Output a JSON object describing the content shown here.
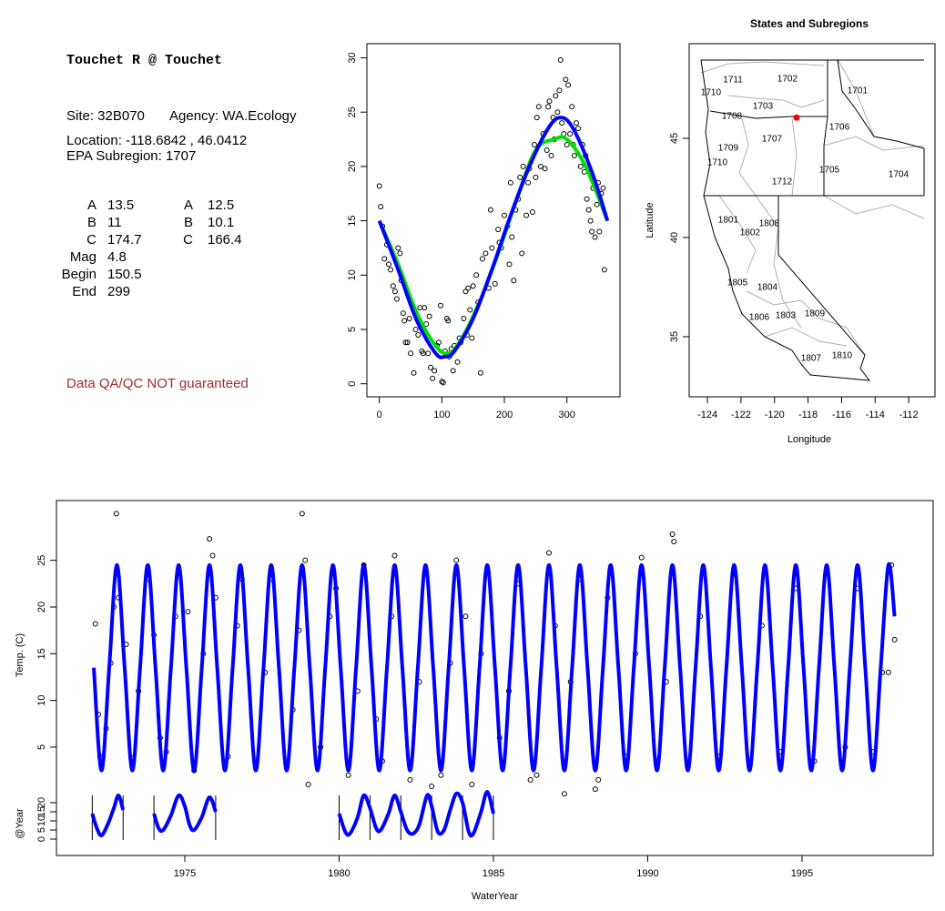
{
  "info": {
    "title": "Touchet R @ Touchet",
    "site": "Site: 32B070",
    "agency": "Agency: WA.Ecology",
    "location": "Location: -118.6842 , 46.0412",
    "subregion": "EPA Subregion: 1707",
    "params": [
      {
        "label": "A",
        "value": 13.5
      },
      {
        "label": "B",
        "value": 11
      },
      {
        "label": "C",
        "value": 174.7
      },
      {
        "label": "Mag",
        "value": 4.8
      },
      {
        "label": "Begin",
        "value": 150.5
      },
      {
        "label": "End",
        "value": 299
      }
    ],
    "params2": [
      {
        "label": "A",
        "value": 12.5
      },
      {
        "label": "B",
        "value": 10.1
      },
      {
        "label": "C",
        "value": 166.4
      }
    ],
    "note": "Data QA/QC NOT guaranteed"
  },
  "chart_data": [
    {
      "type": "scatter",
      "xlim": [
        -20,
        385
      ],
      "ylim": [
        -1.2,
        31.3
      ],
      "xticks": [
        0,
        100,
        200,
        300
      ],
      "yticks": [
        0,
        5,
        10,
        15,
        20,
        25,
        30
      ],
      "series": [
        {
          "style": "points",
          "color": "#000000",
          "x": [
            0,
            2,
            5,
            8,
            12,
            15,
            18,
            22,
            25,
            28,
            30,
            33,
            35,
            38,
            40,
            42,
            45,
            48,
            50,
            55,
            58,
            62,
            65,
            68,
            70,
            72,
            75,
            78,
            80,
            82,
            85,
            88,
            92,
            95,
            98,
            100,
            102,
            105,
            108,
            110,
            112,
            115,
            118,
            120,
            125,
            128,
            130,
            135,
            138,
            140,
            142,
            145,
            148,
            150,
            155,
            158,
            162,
            165,
            170,
            175,
            178,
            180,
            185,
            190,
            192,
            195,
            200,
            205,
            208,
            210,
            212,
            215,
            218,
            222,
            225,
            228,
            230,
            235,
            238,
            240,
            245,
            248,
            250,
            252,
            255,
            258,
            262,
            265,
            268,
            270,
            272,
            275,
            278,
            280,
            282,
            285,
            288,
            290,
            292,
            295,
            298,
            300,
            302,
            305,
            308,
            310,
            312,
            315,
            318,
            322,
            325,
            328,
            330,
            332,
            335,
            338,
            340,
            342,
            345,
            348,
            350,
            352,
            355,
            358,
            360
          ],
          "values": [
            18.2,
            16.3,
            14.5,
            11.5,
            12.8,
            11,
            10.5,
            9,
            8.5,
            7.8,
            12.5,
            12,
            9.5,
            6.5,
            5.8,
            3.8,
            3.8,
            6,
            2.8,
            1,
            5,
            4.5,
            7,
            3,
            2.8,
            7,
            5.5,
            2.8,
            6.2,
            1.5,
            0.5,
            1.2,
            3.5,
            3.8,
            7.2,
            0.2,
            0.1,
            3,
            6,
            5.8,
            2.5,
            3.2,
            1.2,
            3.5,
            2,
            4.2,
            3.8,
            6,
            8.5,
            4.5,
            8.8,
            6.8,
            4.2,
            9,
            10,
            7.5,
            1,
            11.5,
            12,
            8.8,
            16,
            12.5,
            9.2,
            14.2,
            13,
            12.5,
            15.5,
            14.5,
            11,
            18.5,
            13.5,
            9.5,
            16,
            17,
            19,
            12,
            20,
            15.5,
            18.5,
            19.8,
            15.8,
            22,
            19,
            24.5,
            25.5,
            20,
            23,
            19.8,
            21.5,
            25.5,
            26,
            21,
            24.5,
            22.5,
            26.5,
            25,
            27,
            29.8,
            24,
            23,
            28,
            22,
            27.5,
            23,
            25.5,
            22,
            21,
            24,
            23.5,
            20,
            22,
            19.5,
            21,
            17,
            16,
            15,
            14,
            18,
            13.5,
            16.5,
            18.5,
            14,
            17.5,
            18,
            10.5
          ]
        },
        {
          "style": "line",
          "color": "#00e000",
          "x": [
            0,
            30,
            60,
            90,
            110,
            130,
            160,
            190,
            220,
            250,
            280,
            300,
            330,
            365
          ],
          "values": [
            15,
            11,
            6.5,
            3.5,
            2.8,
            4,
            7.5,
            12,
            17,
            21.5,
            22.5,
            22.5,
            20,
            15
          ]
        },
        {
          "style": "line",
          "color": "#0000ff",
          "x": [
            0,
            30,
            60,
            90,
            105,
            120,
            150,
            180,
            210,
            240,
            270,
            290,
            310,
            340,
            365
          ],
          "values": [
            15,
            10.5,
            5.8,
            2.8,
            2.5,
            3,
            6,
            10.5,
            15.5,
            20,
            23.5,
            24.5,
            23.5,
            19.5,
            15
          ]
        }
      ]
    },
    {
      "type": "map",
      "title": "States and Subregions",
      "xlabel": "Longitude",
      "ylabel": "Latitude",
      "xlim": [
        -125.09,
        -110.43
      ],
      "ylim": [
        31.97,
        49.77
      ],
      "xticks": [
        -124,
        -122,
        -120,
        -118,
        -116,
        -114,
        -112
      ],
      "yticks": [
        35,
        40,
        45
      ],
      "regions": [
        {
          "label": "1702",
          "x": -119.23,
          "y": 47.98
        },
        {
          "label": "1701",
          "x": -115.05,
          "y": 47.38
        },
        {
          "label": "1711",
          "x": -122.48,
          "y": 47.94
        },
        {
          "label": "1710",
          "x": -123.79,
          "y": 47.29
        },
        {
          "label": "1703",
          "x": -120.69,
          "y": 46.6
        },
        {
          "label": "1708",
          "x": -122.54,
          "y": 46.1
        },
        {
          "label": "1706",
          "x": -116.13,
          "y": 45.55
        },
        {
          "label": "1707",
          "x": -120.15,
          "y": 44.95
        },
        {
          "label": "1709",
          "x": -122.76,
          "y": 44.49
        },
        {
          "label": "1710",
          "x": -123.41,
          "y": 43.76
        },
        {
          "label": "1705",
          "x": -116.73,
          "y": 43.39
        },
        {
          "label": "1704",
          "x": -112.6,
          "y": 43.16
        },
        {
          "label": "1712",
          "x": -119.55,
          "y": 42.8
        },
        {
          "label": "1801",
          "x": -122.76,
          "y": 40.87
        },
        {
          "label": "1808",
          "x": -120.32,
          "y": 40.69
        },
        {
          "label": "1802",
          "x": -121.46,
          "y": 40.23
        },
        {
          "label": "1805",
          "x": -122.21,
          "y": 37.71
        },
        {
          "label": "1804",
          "x": -120.42,
          "y": 37.48
        },
        {
          "label": "1809",
          "x": -117.6,
          "y": 36.15
        },
        {
          "label": "1806",
          "x": -120.91,
          "y": 35.96
        },
        {
          "label": "1803",
          "x": -119.34,
          "y": 36.05
        },
        {
          "label": "1807",
          "x": -117.82,
          "y": 33.9
        },
        {
          "label": "1810",
          "x": -115.97,
          "y": 34.04
        }
      ],
      "site": {
        "x": -118.6842,
        "y": 46.0412,
        "color": "#ff0000"
      }
    },
    {
      "type": "line",
      "xlabel": "WaterYear",
      "ylabel": "Temp. (C)",
      "y2label": "@Year",
      "xlim": [
        1970.84,
        1999.25
      ],
      "ylim": [
        -6.6,
        31.4
      ],
      "y2lim": [
        -9,
        186
      ],
      "xticks": [
        1975,
        1980,
        1985,
        1990,
        1995
      ],
      "yticks": [
        5,
        10,
        15,
        20,
        25
      ],
      "y2ticks": [
        0,
        5,
        10,
        15,
        20
      ],
      "series": [
        {
          "style": "points",
          "color": "#000000",
          "x": [
            1972.1,
            1972.2,
            1972.25,
            1972.45,
            1972.6,
            1972.7,
            1972.78,
            1972.85,
            1973.1,
            1973.3,
            1973.5,
            1973.8,
            1974.0,
            1974.2,
            1974.4,
            1974.7,
            1974.8,
            1975.1,
            1975.3,
            1975.6,
            1975.8,
            1975.9,
            1976.0,
            1976.4,
            1976.7,
            1976.85,
            1977.3,
            1977.6,
            1977.8,
            1978.3,
            1978.5,
            1978.7,
            1978.8,
            1978.9,
            1979.0,
            1979.4,
            1979.7,
            1979.9,
            1980.3,
            1980.6,
            1980.8,
            1981.2,
            1981.4,
            1981.7,
            1981.8,
            1982.3,
            1982.6,
            1982.8,
            1983.0,
            1983.3,
            1983.6,
            1983.8,
            1984.1,
            1984.3,
            1984.6,
            1984.8,
            1985.2,
            1985.5,
            1985.8,
            1986.2,
            1986.4,
            1986.8,
            1987.0,
            1987.3,
            1987.5,
            1987.8,
            1988.3,
            1988.4,
            1988.7,
            1989.3,
            1989.6,
            1989.8,
            1990.3,
            1990.6,
            1990.8,
            1990.85,
            1991.3,
            1991.7,
            1992.3,
            1992.8,
            1993.3,
            1993.7,
            1994.3,
            1994.8,
            1995.4,
            1995.8,
            1996.4,
            1996.8,
            1997.3,
            1997.6,
            1997.8,
            1997.9,
            1998.0
          ],
          "values": [
            18.2,
            8.5,
            4,
            7,
            14,
            20,
            30,
            21,
            16,
            3.8,
            11,
            23,
            17,
            6,
            4.5,
            19,
            24,
            19.5,
            2.5,
            15,
            27.3,
            25.5,
            21,
            4,
            18,
            23,
            2.8,
            13,
            23,
            3,
            9,
            17.5,
            30,
            25,
            1,
            5,
            19,
            22,
            2,
            11,
            24.5,
            8,
            3.5,
            19,
            25.5,
            1.5,
            12,
            24,
            0.8,
            2,
            14,
            25,
            19,
            1,
            15,
            24,
            6,
            11,
            22.5,
            1.5,
            2,
            25.8,
            18,
            0,
            12,
            23,
            0.5,
            1.5,
            21,
            4,
            15,
            25.3,
            3.5,
            12,
            27.8,
            27,
            3,
            19,
            4,
            23.5,
            3.5,
            18,
            4.5,
            22,
            3.5,
            24,
            5,
            22,
            4.5,
            13,
            13,
            24.5,
            16.5
          ]
        },
        {
          "style": "line",
          "color": "#0000ff",
          "x": [
            1972.05,
            1972.3,
            1972.55,
            1972.8,
            1973.05,
            1973.3,
            1973.55,
            1973.8,
            1974.05,
            1974.3,
            1974.55,
            1974.8,
            1975.05,
            1975.3,
            1975.55,
            1975.8,
            1976.05,
            1976.3,
            1976.55,
            1976.8,
            1977.05,
            1977.3,
            1977.55,
            1977.8,
            1978.05,
            1978.3,
            1978.55,
            1978.8,
            1979.05,
            1979.3,
            1979.55,
            1979.8,
            1980.05,
            1980.3,
            1980.55,
            1980.8,
            1981.05,
            1981.3,
            1981.55,
            1981.8,
            1982.05,
            1982.3,
            1982.55,
            1982.8,
            1983.05,
            1983.3,
            1983.55,
            1983.8,
            1984.05,
            1984.3,
            1984.55,
            1984.8,
            1985.05,
            1985.3,
            1985.55,
            1985.8,
            1986.05,
            1986.3,
            1986.55,
            1986.8,
            1987.05,
            1987.3,
            1987.55,
            1987.8,
            1988.05,
            1988.3,
            1988.55,
            1988.8,
            1989.05,
            1989.3,
            1989.55,
            1989.8,
            1990.05,
            1990.3,
            1990.55,
            1990.8,
            1991.05,
            1991.3,
            1991.55,
            1991.8,
            1992.05,
            1992.3,
            1992.55,
            1992.8,
            1993.05,
            1993.3,
            1993.55,
            1993.8,
            1994.05,
            1994.3,
            1994.55,
            1994.8,
            1995.05,
            1995.3,
            1995.55,
            1995.8,
            1996.05,
            1996.3,
            1996.55,
            1996.8,
            1997.05,
            1997.3,
            1997.55,
            1997.8,
            1998.0
          ],
          "values": [
            13.5,
            2.5,
            13.5,
            24.5,
            13.5,
            2.5,
            13.5,
            24.5,
            13.5,
            2.5,
            13.5,
            24.5,
            13.5,
            2.5,
            13.5,
            24.5,
            13.5,
            2.5,
            13.5,
            24.5,
            13.5,
            2.5,
            13.5,
            24.5,
            13.5,
            2.5,
            13.5,
            24.5,
            13.5,
            2.5,
            13.5,
            24.5,
            13.5,
            2.5,
            13.5,
            24.5,
            13.5,
            2.5,
            13.5,
            24.5,
            13.5,
            2.5,
            13.5,
            24.5,
            13.5,
            2.5,
            13.5,
            24.5,
            13.5,
            2.5,
            13.5,
            24.5,
            13.5,
            2.5,
            13.5,
            24.5,
            13.5,
            2.5,
            13.5,
            24.5,
            13.5,
            2.5,
            13.5,
            24.5,
            13.5,
            2.5,
            13.5,
            24.5,
            13.5,
            2.5,
            13.5,
            24.5,
            13.5,
            2.5,
            13.5,
            24.5,
            13.5,
            2.5,
            13.5,
            24.5,
            13.5,
            2.5,
            13.5,
            24.5,
            13.5,
            2.5,
            13.5,
            24.5,
            13.5,
            2.5,
            13.5,
            24.5,
            13.5,
            2.5,
            13.5,
            24.5,
            13.5,
            2.5,
            13.5,
            24.5,
            13.5,
            2.5,
            13.5,
            24.5,
            19
          ]
        },
        {
          "style": "line",
          "axis": "y2",
          "color": "#0000ff",
          "x": [
            1972,
            1972.15,
            1972.3,
            1972.5,
            1972.7,
            1972.85,
            1973,
            null,
            1974,
            1974.15,
            1974.3,
            1974.55,
            1974.8,
            1975,
            1975.15,
            1975.3,
            1975.55,
            1975.8,
            1976,
            null,
            1980,
            1980.2,
            1980.35,
            1980.6,
            1980.8,
            1981,
            1981.2,
            1981.35,
            1981.6,
            1981.8,
            1982,
            1982.2,
            1982.4,
            1982.6,
            1982.85,
            1983,
            1983.2,
            1983.4,
            1983.6,
            1983.8,
            1984,
            1984.2,
            1984.35,
            1984.6,
            1984.8,
            1985
          ],
          "values": [
            14,
            6,
            2,
            8,
            17,
            24,
            16,
            null,
            14,
            6,
            5,
            13,
            24,
            18,
            8,
            5,
            12,
            23,
            15,
            null,
            14,
            4,
            3,
            12,
            24,
            17,
            6,
            5,
            14,
            24,
            15,
            5,
            3,
            8,
            24,
            18,
            4,
            5,
            16,
            25,
            20,
            4,
            3,
            15,
            26,
            14
          ]
        }
      ],
      "year_marks": [
        1972,
        1973,
        1974,
        1976,
        1980,
        1981,
        1982,
        1983,
        1984,
        1985
      ]
    }
  ]
}
